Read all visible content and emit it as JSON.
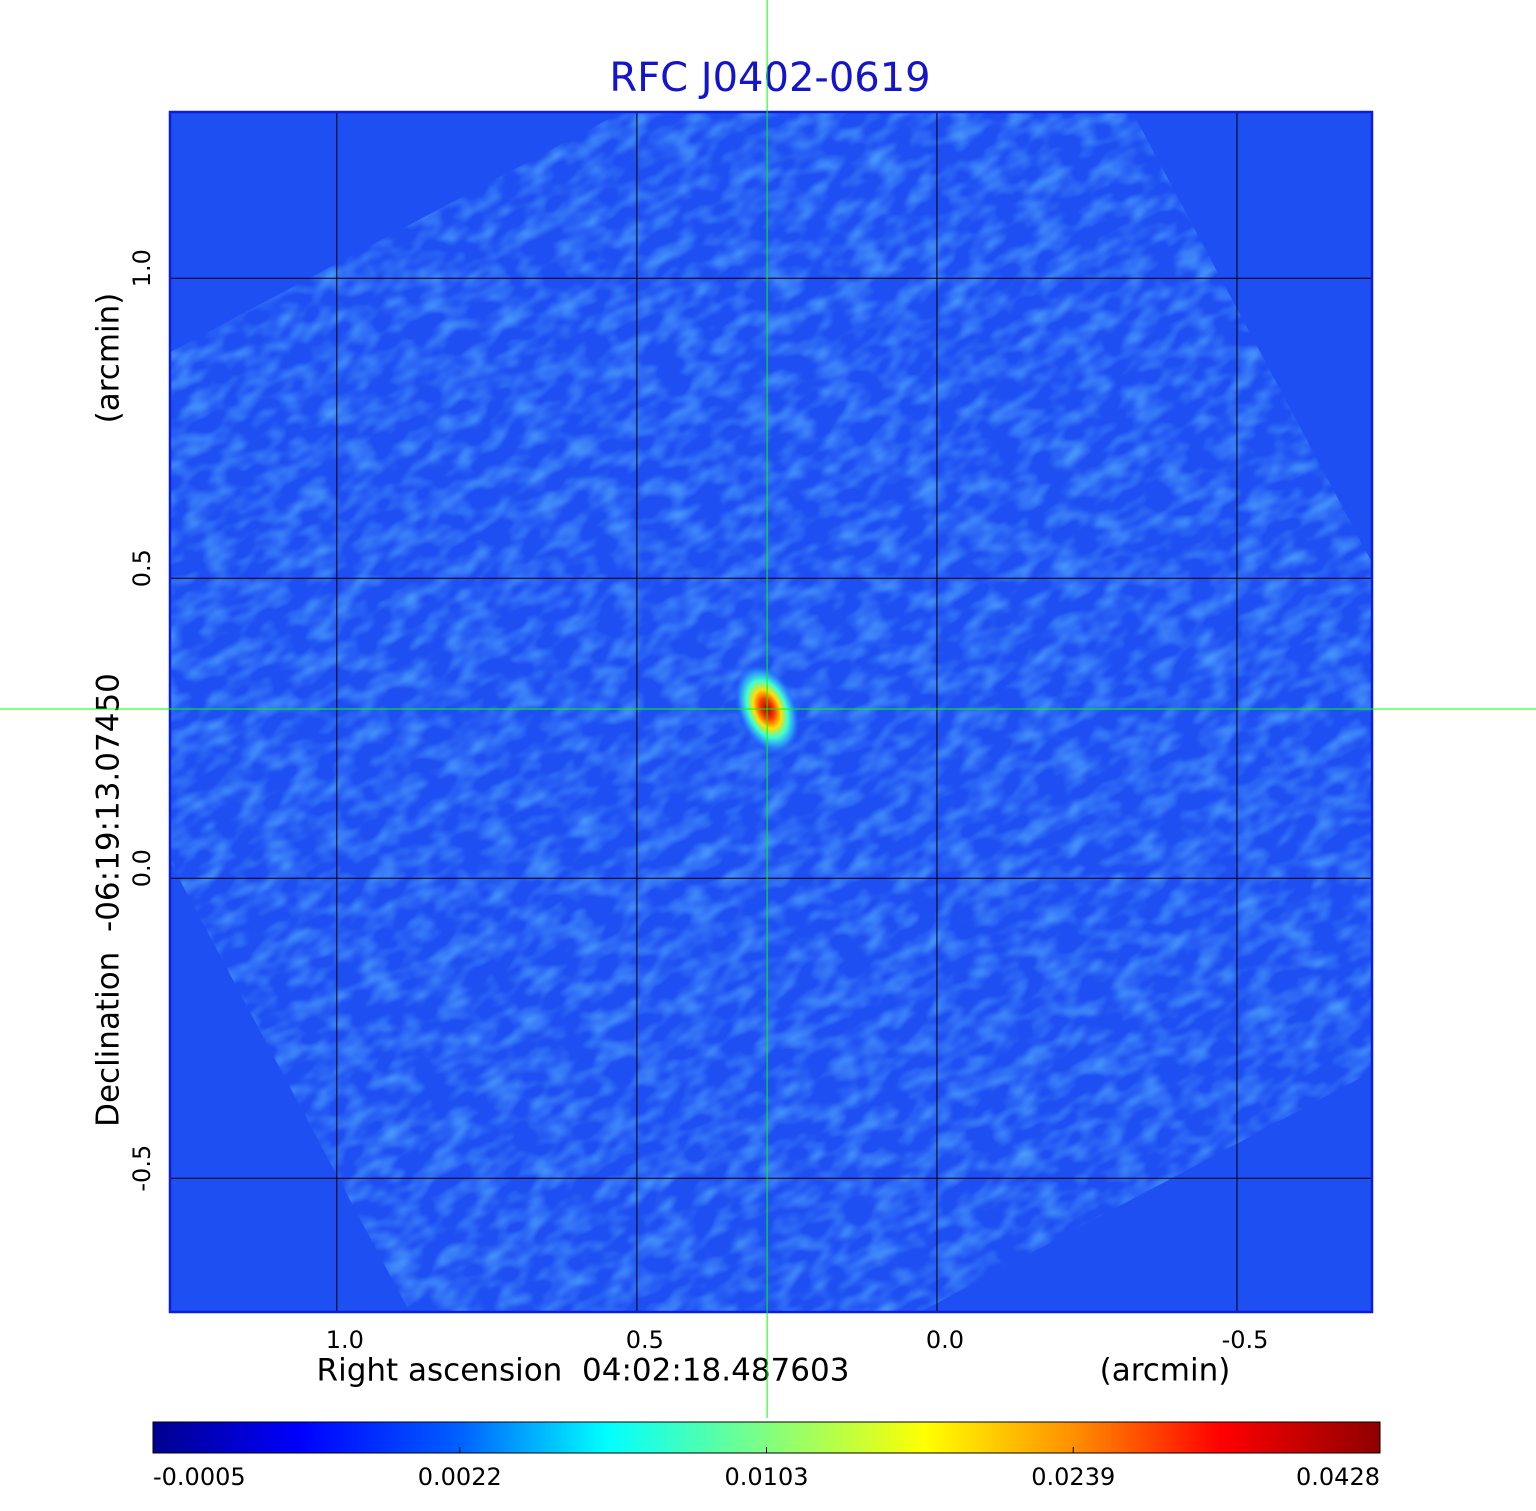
{
  "chart_data": {
    "type": "image",
    "title": "RFC J0402-0619",
    "x_label": "Right ascension  04:02:18.487603",
    "x_unit": "(arcmin)",
    "y_label": "Declination  -06:19:13.07450",
    "y_unit": "(arcmin)",
    "xlim": [
      1.278,
      -0.725
    ],
    "ylim": [
      -0.723,
      1.277
    ],
    "xticks": [
      {
        "value": 1,
        "label": "1.0"
      },
      0.5,
      {
        "value": 0,
        "label": "0.0"
      },
      -0.5
    ],
    "yticks": [
      {
        "value": 1,
        "label": "1.0"
      },
      0.5,
      {
        "value": 0,
        "label": "0.0"
      },
      -0.5
    ],
    "grid": true,
    "crosshair": {
      "x": 0.283,
      "y": 0.282,
      "color": "#00ff00"
    },
    "source": {
      "x": 0.283,
      "y": 0.282,
      "peak": 0.0428
    },
    "colormap": "jet",
    "colorbar_ticks": [
      -0.0005,
      0.0022,
      0.0103,
      0.0239,
      0.0428
    ]
  }
}
